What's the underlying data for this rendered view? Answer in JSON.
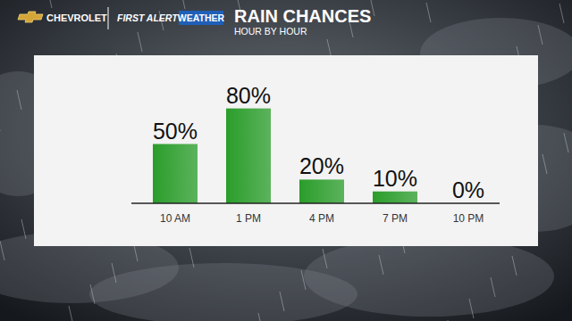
{
  "header": {
    "brand": "CHEVROLET",
    "show": "FIRST ALERT",
    "badge": "WEATHER"
  },
  "chart_data": {
    "type": "bar",
    "title": "RAIN CHANCES",
    "subtitle": "HOUR BY HOUR",
    "categories": [
      "10 AM",
      "1 PM",
      "4 PM",
      "7 PM",
      "10 PM"
    ],
    "values": [
      50,
      80,
      20,
      10,
      0
    ],
    "value_labels": [
      "50%",
      "80%",
      "20%",
      "10%",
      "0%"
    ],
    "color": "#2a9d2a",
    "ylim": [
      0,
      100
    ],
    "data_labels": true,
    "tick_labels": "x",
    "grid": false
  }
}
